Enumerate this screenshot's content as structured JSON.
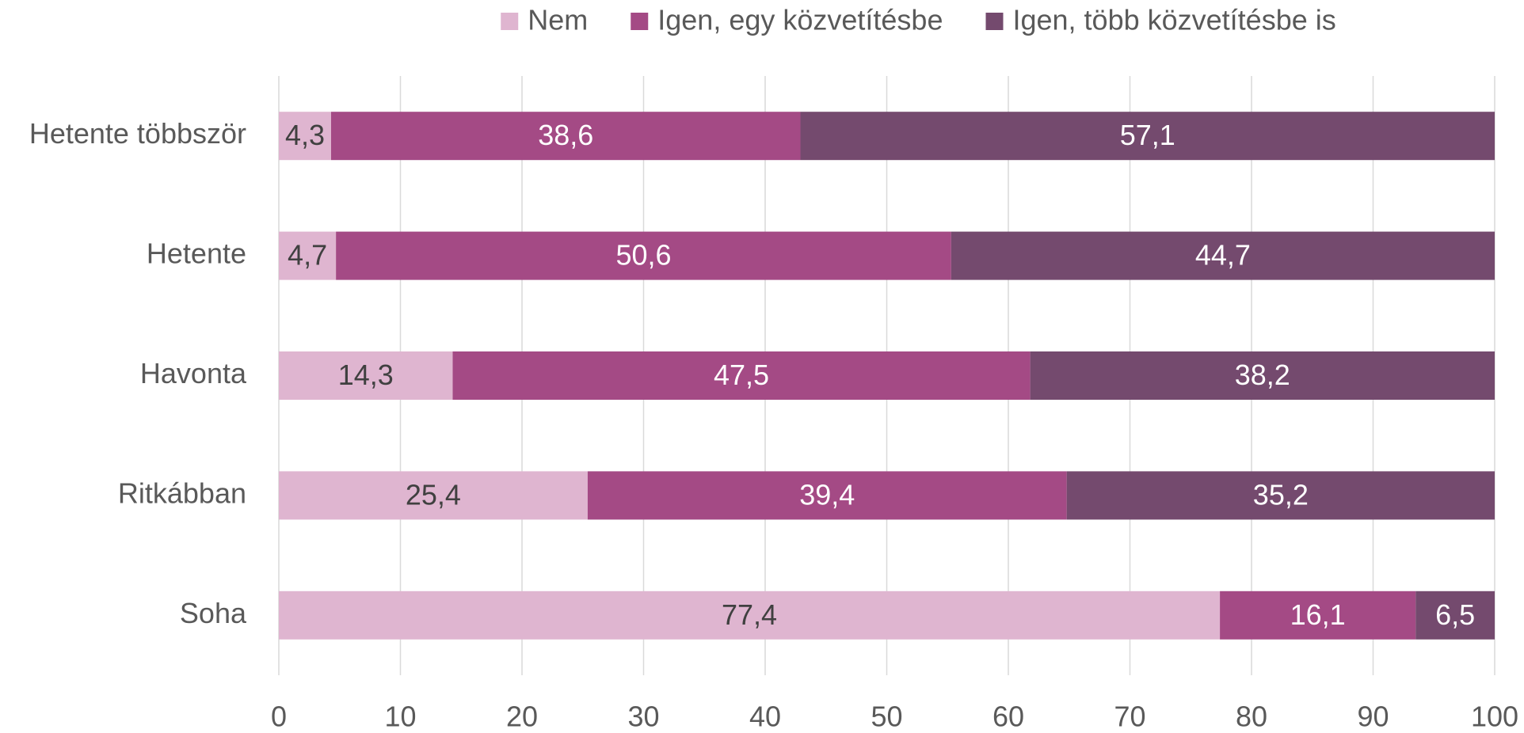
{
  "chart_data": {
    "type": "stacked_barh",
    "categories": [
      "Hetente többször",
      "Hetente",
      "Havonta",
      "Ritkábban",
      "Soha"
    ],
    "series": [
      {
        "name": "Nem",
        "color": "#dfb5d0",
        "values": [
          4.3,
          4.7,
          14.3,
          25.4,
          77.4
        ],
        "value_labels": [
          "4,3",
          "4,7",
          "14,3",
          "25,4",
          "77,4"
        ]
      },
      {
        "name": "Igen, egy közvetítésbe",
        "color": "#a44a85",
        "values": [
          38.6,
          50.6,
          47.5,
          39.4,
          16.1
        ],
        "value_labels": [
          "38,6",
          "50,6",
          "47,5",
          "39,4",
          "16,1"
        ]
      },
      {
        "name": "Igen, több közvetítésbe is",
        "color": "#744a6e",
        "values": [
          57.1,
          44.7,
          38.2,
          35.2,
          6.5
        ],
        "value_labels": [
          "57,1",
          "44,7",
          "38,2",
          "35,2",
          "6,5"
        ]
      }
    ],
    "xlim": [
      0,
      100
    ],
    "xticks": [
      0,
      10,
      20,
      30,
      40,
      50,
      60,
      70,
      80,
      90,
      100
    ],
    "grid": true,
    "legend": "top"
  }
}
